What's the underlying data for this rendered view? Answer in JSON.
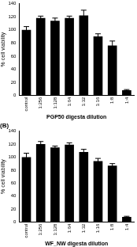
{
  "chart_data": [
    {
      "type": "bar",
      "x_label": "PGP50 digesta dilution",
      "y_label": "% cell viability",
      "categories": [
        "control",
        "1:256",
        "1:128",
        "1:64",
        "1:32",
        "1:16",
        "1:8",
        "1:4"
      ],
      "values": [
        100,
        118,
        114,
        118,
        122,
        90,
        76,
        8
      ],
      "errors": [
        5,
        3,
        4,
        3,
        8,
        4,
        7,
        1
      ],
      "color": "#000000",
      "ylim": [
        0,
        140
      ],
      "yticks": [
        0,
        20,
        40,
        60,
        80,
        100,
        120,
        140
      ],
      "grid": false
    },
    {
      "type": "bar",
      "title": "(B)",
      "x_label": "WF_NW digesta dilution",
      "y_label": "% cell viability",
      "categories": [
        "control",
        "1:256",
        "1:128",
        "1:64",
        "1:32",
        "1:16",
        "1:8",
        "1:4"
      ],
      "values": [
        100,
        120,
        115,
        119,
        108,
        94,
        87,
        8
      ],
      "errors": [
        6,
        4,
        2,
        3,
        4,
        4,
        3,
        1
      ],
      "color": "#000000",
      "ylim": [
        0,
        140
      ],
      "yticks": [
        0,
        20,
        40,
        60,
        80,
        100,
        120,
        140
      ],
      "grid": false
    }
  ]
}
